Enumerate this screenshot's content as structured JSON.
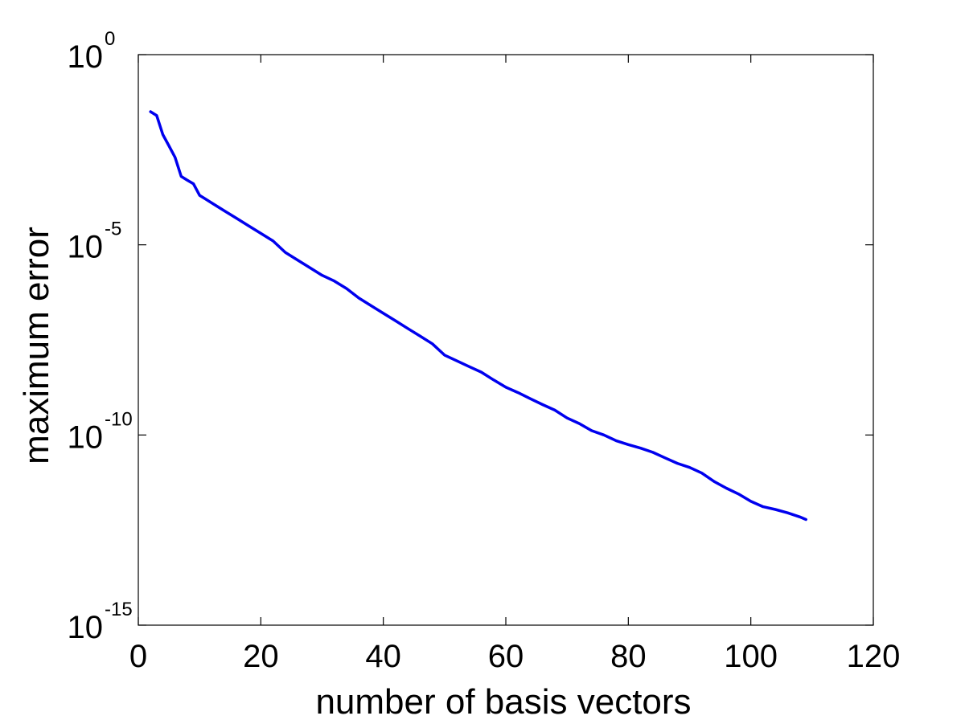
{
  "chart_data": {
    "type": "line",
    "xlabel": "number of basis vectors",
    "ylabel": "maximum error",
    "xlim": [
      0,
      120
    ],
    "ylim_exponent": [
      -15,
      0
    ],
    "y_scale": "log10",
    "grid": false,
    "legend": "none",
    "x_ticks": [
      "0",
      "20",
      "40",
      "60",
      "80",
      "100",
      "120"
    ],
    "y_ticks": [
      {
        "base": "10",
        "exp": "0"
      },
      {
        "base": "10",
        "exp": "-5"
      },
      {
        "base": "10",
        "exp": "-10"
      },
      {
        "base": "10",
        "exp": "-15"
      }
    ],
    "series": [
      {
        "color": "#0000ee",
        "x": [
          2,
          3,
          4,
          5,
          6,
          7,
          8,
          9,
          10,
          12,
          14,
          16,
          18,
          20,
          22,
          24,
          26,
          28,
          30,
          32,
          34,
          36,
          38,
          40,
          42,
          44,
          46,
          48,
          50,
          52,
          54,
          56,
          58,
          60,
          62,
          64,
          66,
          68,
          70,
          72,
          74,
          76,
          78,
          80,
          82,
          84,
          86,
          88,
          90,
          92,
          94,
          96,
          98,
          100,
          102,
          104,
          106,
          108,
          109
        ],
        "y": [
          0.0316,
          0.0251,
          0.0079,
          0.004,
          0.002,
          0.00063,
          0.0005,
          0.0004,
          0.0002,
          0.000126,
          7.94e-05,
          5.01e-05,
          3.16e-05,
          2e-05,
          1.26e-05,
          6.31e-06,
          3.98e-06,
          2.51e-06,
          1.58e-06,
          1.12e-06,
          7.08e-07,
          3.98e-07,
          2.51e-07,
          1.58e-07,
          1e-07,
          6.31e-08,
          4e-08,
          2.5e-08,
          1.26e-08,
          8.9e-09,
          6.3e-09,
          4.5e-09,
          2.8e-09,
          1.8e-09,
          1.3e-09,
          9e-10,
          6.3e-10,
          4.5e-10,
          2.8e-10,
          2e-10,
          1.3e-10,
          1e-10,
          7.1e-11,
          5.6e-11,
          4.5e-11,
          3.5e-11,
          2.5e-11,
          1.8e-11,
          1.4e-11,
          1e-11,
          6e-12,
          4e-12,
          2.8e-12,
          1.8e-12,
          1.3e-12,
          1.1e-12,
          9e-13,
          7e-13,
          6e-13
        ]
      }
    ]
  }
}
